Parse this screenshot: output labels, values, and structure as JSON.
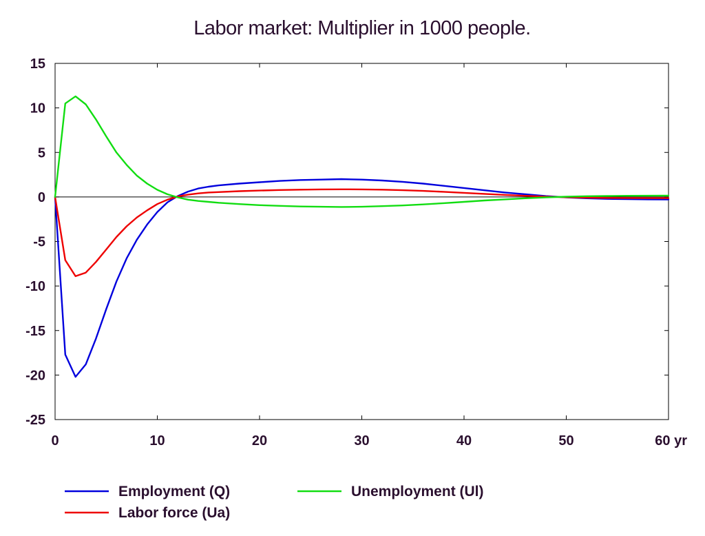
{
  "chart_data": {
    "type": "line",
    "title": "Labor market: Multiplier in 1000 people.",
    "xlabel": "",
    "ylabel": "",
    "xlim": [
      0,
      60
    ],
    "ylim": [
      -25,
      15
    ],
    "x_ticks": [
      0,
      10,
      20,
      30,
      40,
      50,
      60
    ],
    "x_tick_labels": [
      "0",
      "10",
      "20",
      "30",
      "40",
      "50",
      "60 yr"
    ],
    "y_ticks": [
      15,
      10,
      5,
      0,
      -5,
      -10,
      -15,
      -20,
      -25
    ],
    "y_tick_labels": [
      "15",
      "10",
      "5",
      "0",
      "-5",
      "-10",
      "-15",
      "-20",
      "-25"
    ],
    "grid": false,
    "legend_position": "bottom",
    "series": [
      {
        "name": "Employment (Q)",
        "color": "#0000dd",
        "x": [
          0,
          1,
          2,
          3,
          4,
          5,
          6,
          7,
          8,
          9,
          10,
          11,
          12,
          13,
          14,
          15,
          16,
          18,
          20,
          22,
          24,
          26,
          28,
          30,
          32,
          34,
          36,
          38,
          40,
          42,
          44,
          46,
          48,
          50,
          52,
          54,
          56,
          58,
          60
        ],
        "y": [
          0,
          -17.7,
          -20.2,
          -18.8,
          -15.9,
          -12.6,
          -9.5,
          -6.9,
          -4.8,
          -3.1,
          -1.7,
          -0.6,
          0.1,
          0.6,
          0.95,
          1.15,
          1.3,
          1.5,
          1.65,
          1.8,
          1.9,
          1.95,
          2.0,
          1.95,
          1.85,
          1.7,
          1.5,
          1.25,
          1.0,
          0.75,
          0.5,
          0.3,
          0.1,
          -0.05,
          -0.15,
          -0.22,
          -0.25,
          -0.27,
          -0.28
        ]
      },
      {
        "name": "Labor force (Ua)",
        "color": "#ee0000",
        "x": [
          0,
          1,
          2,
          3,
          4,
          5,
          6,
          7,
          8,
          9,
          10,
          11,
          12,
          13,
          14,
          15,
          16,
          18,
          20,
          22,
          24,
          26,
          28,
          30,
          32,
          34,
          36,
          38,
          40,
          42,
          44,
          46,
          48,
          50,
          52,
          54,
          56,
          58,
          60
        ],
        "y": [
          0,
          -7.1,
          -8.9,
          -8.5,
          -7.3,
          -5.9,
          -4.5,
          -3.3,
          -2.3,
          -1.5,
          -0.8,
          -0.3,
          0.05,
          0.25,
          0.4,
          0.5,
          0.55,
          0.65,
          0.72,
          0.78,
          0.82,
          0.85,
          0.86,
          0.85,
          0.82,
          0.76,
          0.68,
          0.58,
          0.46,
          0.35,
          0.23,
          0.13,
          0.04,
          -0.03,
          -0.08,
          -0.11,
          -0.12,
          -0.13,
          -0.13
        ]
      },
      {
        "name": "Unemployment (Ul)",
        "color": "#11dd11",
        "x": [
          0,
          1,
          2,
          3,
          4,
          5,
          6,
          7,
          8,
          9,
          10,
          11,
          12,
          13,
          14,
          15,
          16,
          18,
          20,
          22,
          24,
          26,
          28,
          30,
          32,
          34,
          36,
          38,
          40,
          42,
          44,
          46,
          48,
          50,
          52,
          54,
          56,
          58,
          60
        ],
        "y": [
          0,
          10.5,
          11.3,
          10.4,
          8.7,
          6.8,
          5.0,
          3.6,
          2.4,
          1.5,
          0.8,
          0.3,
          -0.05,
          -0.3,
          -0.45,
          -0.55,
          -0.65,
          -0.8,
          -0.92,
          -1.0,
          -1.07,
          -1.1,
          -1.12,
          -1.1,
          -1.03,
          -0.95,
          -0.84,
          -0.7,
          -0.55,
          -0.4,
          -0.27,
          -0.15,
          -0.05,
          0.03,
          0.08,
          0.11,
          0.13,
          0.14,
          0.15
        ]
      }
    ]
  }
}
